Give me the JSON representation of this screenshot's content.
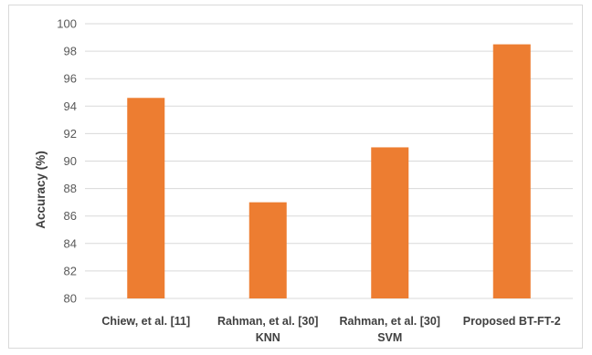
{
  "chart_data": {
    "type": "bar",
    "title": "",
    "xlabel": "",
    "ylabel": "Accuracy (%)",
    "ylim": [
      80,
      100
    ],
    "ytick_step": 2,
    "grid": true,
    "legend": "none",
    "bar_color": "#ED7D31",
    "categories": [
      [
        "Chiew, et al. [11]"
      ],
      [
        "Rahman, et al. [30]",
        "KNN"
      ],
      [
        "Rahman, et al. [30]",
        "SVM"
      ],
      [
        "Proposed BT-FT-2"
      ]
    ],
    "values": [
      94.6,
      87.0,
      91.0,
      98.5
    ]
  }
}
